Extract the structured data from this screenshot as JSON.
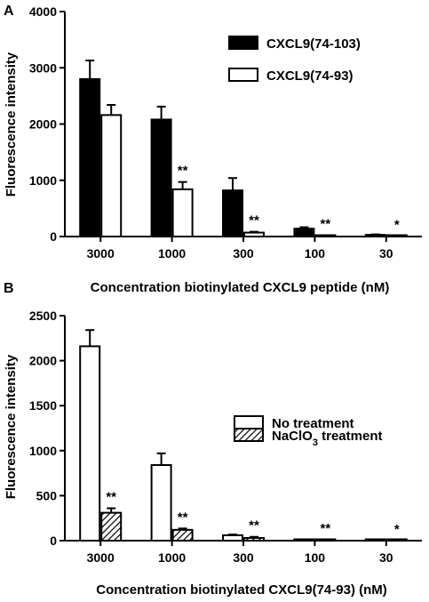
{
  "chart_data": [
    {
      "type": "bar",
      "panel": "A",
      "categories": [
        "3000",
        "1000",
        "300",
        "100",
        "30"
      ],
      "series": [
        {
          "name": "CXCL9(74-103)",
          "values": [
            2800,
            2080,
            820,
            140,
            30
          ],
          "errors": [
            330,
            230,
            220,
            25,
            8
          ],
          "fill": "solid",
          "significance": [
            "",
            "",
            "",
            "",
            ""
          ]
        },
        {
          "name": "CXCL9(74-93)",
          "values": [
            2160,
            840,
            70,
            15,
            5
          ],
          "errors": [
            180,
            130,
            15,
            5,
            2
          ],
          "fill": "open",
          "significance": [
            "",
            "**",
            "**",
            "**",
            "*"
          ]
        }
      ],
      "xlabel": "Concentration biotinylated CXCL9 peptide (nM)",
      "ylabel": "Fluorescence intensity",
      "ylim": [
        0,
        4000
      ],
      "yticks": [
        "0",
        "1000",
        "2000",
        "3000",
        "4000"
      ],
      "legend_position": "top-right"
    },
    {
      "type": "bar",
      "panel": "B",
      "categories": [
        "3000",
        "1000",
        "300",
        "100",
        "30"
      ],
      "series": [
        {
          "name": "No treatment",
          "values": [
            2160,
            840,
            60,
            10,
            3
          ],
          "errors": [
            180,
            130,
            8,
            3,
            1
          ],
          "fill": "open",
          "significance": [
            "",
            "",
            "",
            "",
            ""
          ]
        },
        {
          "name": "NaClO3 treatment",
          "values": [
            310,
            120,
            30,
            5,
            1
          ],
          "errors": [
            50,
            15,
            12,
            3,
            1
          ],
          "fill": "hatched",
          "significance": [
            "**",
            "**",
            "**",
            "**",
            "*"
          ]
        }
      ],
      "xlabel": "Concentration biotinylated CXCL9(74-93) (nM)",
      "ylabel": "Fluorescence intensity",
      "ylim": [
        0,
        2500
      ],
      "yticks": [
        "0",
        "500",
        "1000",
        "1500",
        "2000",
        "2500"
      ],
      "legend_position": "right"
    }
  ],
  "colors": {
    "bar_solid": "#000000",
    "bar_open": "#ffffff",
    "stroke": "#000000"
  }
}
